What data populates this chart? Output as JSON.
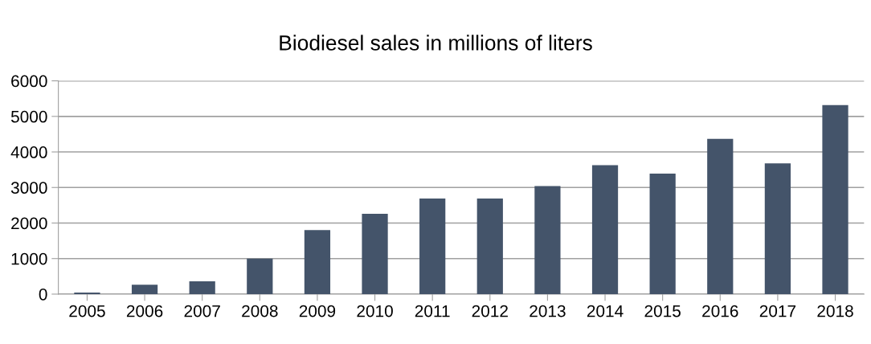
{
  "chart_data": {
    "type": "bar",
    "title": "Biodiesel sales in millions of liters",
    "categories": [
      "2005",
      "2006",
      "2007",
      "2008",
      "2009",
      "2010",
      "2011",
      "2012",
      "2013",
      "2014",
      "2015",
      "2016",
      "2017",
      "2018"
    ],
    "values": [
      45,
      265,
      360,
      1000,
      1800,
      2260,
      2690,
      2690,
      3040,
      3630,
      3390,
      4370,
      3680,
      5320
    ],
    "color": "#44546a",
    "ylim": [
      0,
      6000
    ],
    "yticks": [
      0,
      1000,
      2000,
      3000,
      4000,
      5000,
      6000
    ],
    "grid": "y",
    "legend": false
  }
}
